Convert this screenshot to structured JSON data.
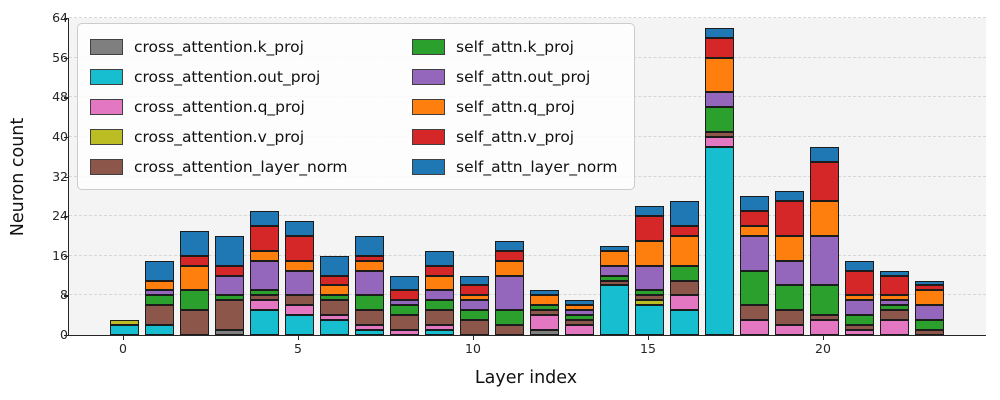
{
  "chart_data": {
    "type": "bar",
    "stacked": true,
    "title": "",
    "xlabel": "Layer index",
    "ylabel": "Neuron count",
    "x": [
      0,
      1,
      2,
      3,
      4,
      5,
      6,
      7,
      8,
      9,
      10,
      11,
      12,
      13,
      14,
      15,
      16,
      17,
      18,
      19,
      20,
      21,
      22,
      23
    ],
    "x_ticks": [
      0,
      5,
      10,
      15,
      20
    ],
    "y_ticks": [
      0,
      8,
      16,
      24,
      32,
      40,
      48,
      56,
      64
    ],
    "ylim": [
      0,
      64
    ],
    "grid": true,
    "grid_style": "dashed",
    "legend_position": "upper left",
    "legend_columns": 2,
    "series": [
      {
        "name": "cross_attention.k_proj",
        "color": "#7f7f7f",
        "values": [
          0,
          0,
          0,
          1,
          0,
          0,
          0,
          0,
          0,
          0,
          0,
          0,
          1,
          0,
          0,
          0,
          0,
          0,
          0,
          0,
          0,
          0,
          0,
          0
        ]
      },
      {
        "name": "cross_attention.out_proj",
        "color": "#17becf",
        "values": [
          2,
          2,
          0,
          0,
          5,
          4,
          3,
          1,
          0,
          1,
          0,
          0,
          0,
          0,
          10,
          6,
          5,
          38,
          0,
          0,
          0,
          0,
          0,
          0
        ]
      },
      {
        "name": "cross_attention.q_proj",
        "color": "#e377c2",
        "values": [
          0,
          0,
          0,
          0,
          2,
          2,
          1,
          1,
          1,
          1,
          0,
          0,
          3,
          2,
          0,
          0,
          3,
          2,
          3,
          2,
          3,
          1,
          3,
          0
        ]
      },
      {
        "name": "cross_attention.v_proj",
        "color": "#bcbd22",
        "values": [
          1,
          0,
          0,
          0,
          0,
          0,
          0,
          0,
          0,
          0,
          0,
          0,
          0,
          0,
          0,
          1,
          0,
          0,
          0,
          0,
          0,
          0,
          0,
          0
        ]
      },
      {
        "name": "cross_attention_layer_norm",
        "color": "#8c564b",
        "values": [
          0,
          4,
          5,
          6,
          1,
          2,
          3,
          3,
          3,
          3,
          3,
          2,
          1,
          1,
          1,
          1,
          3,
          1,
          3,
          3,
          1,
          1,
          2,
          1
        ]
      },
      {
        "name": "self_attn.k_proj",
        "color": "#2ca02c",
        "values": [
          0,
          2,
          4,
          1,
          1,
          0,
          1,
          3,
          2,
          2,
          2,
          3,
          1,
          1,
          1,
          1,
          3,
          5,
          7,
          5,
          6,
          2,
          1,
          2
        ]
      },
      {
        "name": "self_attn.out_proj",
        "color": "#9467bd",
        "values": [
          0,
          1,
          0,
          4,
          6,
          5,
          0,
          5,
          1,
          2,
          2,
          7,
          0,
          1,
          2,
          5,
          0,
          3,
          7,
          5,
          10,
          3,
          1,
          3
        ]
      },
      {
        "name": "self_attn.q_proj",
        "color": "#ff7f0e",
        "values": [
          0,
          2,
          5,
          0,
          2,
          2,
          2,
          2,
          0,
          3,
          1,
          3,
          2,
          1,
          3,
          5,
          6,
          7,
          2,
          5,
          7,
          1,
          1,
          3
        ]
      },
      {
        "name": "self_attn.v_proj",
        "color": "#d62728",
        "values": [
          0,
          0,
          2,
          2,
          5,
          5,
          2,
          1,
          2,
          2,
          2,
          2,
          0,
          0,
          0,
          5,
          2,
          4,
          3,
          7,
          8,
          5,
          4,
          1
        ]
      },
      {
        "name": "self_attn_layer_norm",
        "color": "#1f77b4",
        "values": [
          0,
          4,
          5,
          6,
          3,
          3,
          4,
          4,
          3,
          3,
          2,
          2,
          1,
          1,
          1,
          2,
          5,
          2,
          3,
          2,
          3,
          2,
          1,
          1
        ]
      }
    ],
    "totals": [
      3,
      15,
      21,
      20,
      25,
      23,
      16,
      20,
      12,
      17,
      12,
      19,
      9,
      7,
      18,
      26,
      27,
      62,
      28,
      29,
      38,
      15,
      13,
      11
    ]
  }
}
